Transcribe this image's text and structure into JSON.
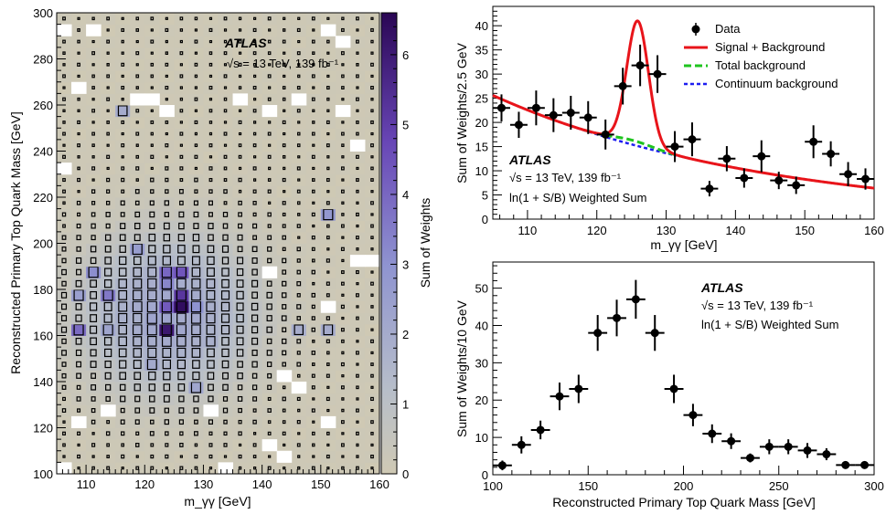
{
  "colors": {
    "z_low": "#cfc9b4",
    "z_mid": "#a9b8d2",
    "z_high": "#2a0654",
    "signal_plus_background": "#e8141a",
    "total_background": "#1fc41f",
    "continuum_background": "#1d1df0",
    "data": "#000000"
  },
  "chart_data": [
    {
      "type": "heatmap",
      "xlabel": "m_γγ [GeV]",
      "ylabel": "Reconstructed Primary Top Quark Mass [GeV]",
      "zlabel": "Sum of Weights",
      "xlim": [
        105,
        160
      ],
      "ylim": [
        100,
        300
      ],
      "zlim": [
        0,
        6.6
      ],
      "x_ticks": [
        "110",
        "120",
        "130",
        "140",
        "150",
        "160"
      ],
      "y_ticks": [
        "100",
        "120",
        "140",
        "160",
        "180",
        "200",
        "220",
        "240",
        "260",
        "280",
        "300"
      ],
      "z_ticks": [
        "0",
        "1",
        "2",
        "3",
        "4",
        "5",
        "6"
      ],
      "annotation": {
        "experiment": "ATLAS",
        "energy": "√s = 13 TeV, 139 fb⁻¹"
      },
      "bin_width_x": 2.5,
      "bin_width_y": 5,
      "grid": false,
      "cells": [
        {
          "x": 123.75,
          "y": 162.5,
          "z": 6.1
        },
        {
          "x": 126.25,
          "y": 172.5,
          "z": 6.4
        },
        {
          "x": 126.25,
          "y": 177.5,
          "z": 5.2
        },
        {
          "x": 123.75,
          "y": 172.5,
          "z": 4.3
        },
        {
          "x": 123.75,
          "y": 187.5,
          "z": 4.0
        },
        {
          "x": 126.25,
          "y": 187.5,
          "z": 4.4
        },
        {
          "x": 108.75,
          "y": 162.5,
          "z": 3.9
        },
        {
          "x": 113.75,
          "y": 177.5,
          "z": 3.6
        },
        {
          "x": 111.25,
          "y": 187.5,
          "z": 3.1
        },
        {
          "x": 123.75,
          "y": 182.5,
          "z": 3.3
        },
        {
          "x": 128.75,
          "y": 172.5,
          "z": 3.0
        },
        {
          "x": 118.75,
          "y": 197.5,
          "z": 2.6
        },
        {
          "x": 151.25,
          "y": 212.5,
          "z": 2.8
        },
        {
          "x": 108.75,
          "y": 177.5,
          "z": 2.5
        },
        {
          "x": 113.75,
          "y": 162.5,
          "z": 2.3
        },
        {
          "x": 121.25,
          "y": 147.5,
          "z": 2.1
        },
        {
          "x": 128.75,
          "y": 137.5,
          "z": 2.2
        },
        {
          "x": 116.25,
          "y": 257.5,
          "z": 2.0
        },
        {
          "x": 146.25,
          "y": 162.5,
          "z": 1.9
        },
        {
          "x": 151.25,
          "y": 162.5,
          "z": 2.0
        },
        {
          "x": 131.25,
          "y": 157.5,
          "z": 1.8
        },
        {
          "x": 118.75,
          "y": 167.5,
          "z": 1.8
        },
        {
          "x": 121.25,
          "y": 177.5,
          "z": 1.9
        },
        {
          "x": 126.25,
          "y": 167.5,
          "z": 2.0
        }
      ]
    },
    {
      "type": "line",
      "xlabel": "m_γγ [GeV]",
      "ylabel": "Sum of Weights/2.5 GeV",
      "xlim": [
        105,
        160
      ],
      "ylim": [
        0,
        44
      ],
      "x_ticks": [
        "110",
        "120",
        "130",
        "140",
        "150",
        "160"
      ],
      "y_ticks": [
        "0",
        "5",
        "10",
        "15",
        "20",
        "25",
        "30",
        "35",
        "40"
      ],
      "legend": [
        "Data",
        "Signal + Background",
        "Total background",
        "Continuum background"
      ],
      "legend_position": "top-right",
      "annotation": {
        "experiment": "ATLAS",
        "energy": "√s = 13 TeV, 139 fb⁻¹",
        "note": "ln(1 + S/B) Weighted Sum"
      },
      "data_points": {
        "x": [
          106.25,
          108.75,
          111.25,
          113.75,
          116.25,
          118.75,
          121.25,
          123.75,
          126.25,
          128.75,
          131.25,
          133.75,
          136.25,
          138.75,
          141.25,
          143.75,
          146.25,
          148.75,
          151.25,
          153.75,
          156.25,
          158.75
        ],
        "y": [
          23,
          19.5,
          23,
          21.5,
          22,
          21,
          17.5,
          27.5,
          31.8,
          30,
          15,
          16.5,
          6.3,
          12.5,
          8.5,
          13,
          8,
          7,
          16,
          13.5,
          9.3,
          8.3
        ],
        "err": [
          2.8,
          2.7,
          3.6,
          3.5,
          3.5,
          3.4,
          3.1,
          3.8,
          4.3,
          3.9,
          3.2,
          3.5,
          1.6,
          2.6,
          2,
          3.3,
          1.8,
          1.8,
          3.4,
          2.6,
          2.5,
          2.2
        ]
      },
      "continuum_background": {
        "x0": 105,
        "y0": 25.6,
        "decay_per_gev": 0.0252
      },
      "signal": {
        "mean": 125.9,
        "sigma": 1.55,
        "peak": 25.0
      }
    },
    {
      "type": "scatter",
      "xlabel": "Reconstructed Primary Top Quark Mass [GeV]",
      "ylabel": "Sum of Weights/10 GeV",
      "xlim": [
        100,
        300
      ],
      "ylim": [
        0,
        57
      ],
      "x_ticks": [
        "100",
        "150",
        "200",
        "250",
        "300"
      ],
      "y_ticks": [
        "0",
        "10",
        "20",
        "30",
        "40",
        "50"
      ],
      "annotation": {
        "experiment": "ATLAS",
        "energy": "√s = 13 TeV, 139 fb⁻¹",
        "note": "ln(1 + S/B) Weighted Sum"
      },
      "x": [
        105,
        115,
        125,
        135,
        145,
        155,
        165,
        175,
        185,
        195,
        205,
        215,
        225,
        235,
        245,
        255,
        265,
        275,
        285,
        295
      ],
      "y": [
        2.5,
        8,
        12,
        21,
        23,
        38,
        42,
        47,
        38,
        23,
        16,
        11,
        9,
        4.5,
        7.5,
        7.5,
        6.5,
        5.5,
        2.6,
        2.6
      ],
      "err": [
        1.3,
        2.3,
        2.5,
        3.7,
        3.8,
        4.8,
        4.9,
        5.2,
        4.8,
        3.8,
        3,
        2.5,
        2.1,
        1.2,
        2,
        2,
        2,
        1.6,
        1,
        0.9
      ],
      "x_err": 5
    }
  ]
}
